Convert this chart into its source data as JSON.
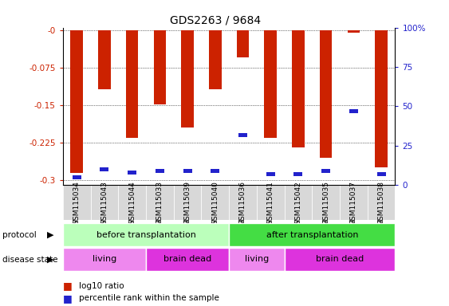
{
  "title": "GDS2263 / 9684",
  "samples": [
    "GSM115034",
    "GSM115043",
    "GSM115044",
    "GSM115033",
    "GSM115039",
    "GSM115040",
    "GSM115036",
    "GSM115041",
    "GSM115042",
    "GSM115035",
    "GSM115037",
    "GSM115038"
  ],
  "log10_ratio": [
    -0.285,
    -0.118,
    -0.215,
    -0.148,
    -0.195,
    -0.118,
    -0.055,
    -0.215,
    -0.235,
    -0.255,
    -0.005,
    -0.275
  ],
  "percentile_rank": [
    5,
    10,
    8,
    9,
    9,
    9,
    32,
    7,
    7,
    9,
    47,
    7
  ],
  "ylim_left": [
    -0.31,
    0.005
  ],
  "yticks_left": [
    0.0,
    -0.075,
    -0.15,
    -0.225,
    -0.3
  ],
  "yticks_right": [
    0,
    25,
    50,
    75,
    100
  ],
  "bar_color": "#cc2200",
  "blue_color": "#2222cc",
  "protocol_before_color": "#bbffbb",
  "protocol_after_color": "#44dd44",
  "living_color": "#ee88ee",
  "braindead_color": "#dd33dd",
  "tick_label_color_left": "#cc2200",
  "tick_label_color_right": "#2222cc",
  "legend_label1": "log10 ratio",
  "legend_label2": "percentile rank within the sample",
  "living_before_count": 3,
  "braindead_before_count": 3,
  "living_after_count": 2,
  "braindead_after_count": 4
}
